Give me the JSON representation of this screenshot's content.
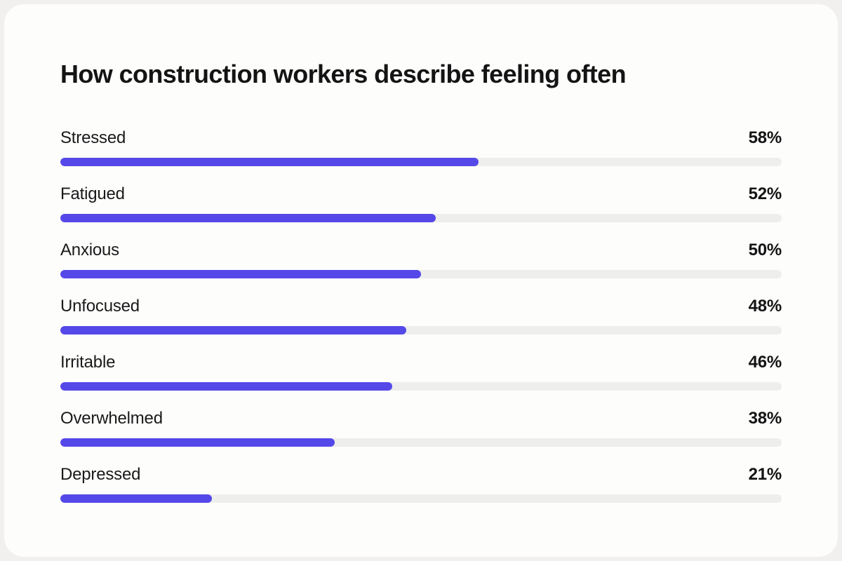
{
  "page": {
    "background": "#f1f0ee",
    "card_background": "#fdfdfc"
  },
  "chart_data": {
    "type": "bar",
    "orientation": "horizontal",
    "title": "How construction workers describe feeling often",
    "categories": [
      "Stressed",
      "Fatigued",
      "Anxious",
      "Unfocused",
      "Irritable",
      "Overwhelmed",
      "Depressed"
    ],
    "values": [
      58,
      52,
      50,
      48,
      46,
      38,
      21
    ],
    "value_labels": [
      "58%",
      "52%",
      "50%",
      "48%",
      "46%",
      "38%",
      "21%"
    ],
    "value_suffix": "%",
    "xlim": [
      0,
      100
    ],
    "bar_color": "#5448e8",
    "track_color": "#eeeeec",
    "grid": false,
    "legend": false
  }
}
